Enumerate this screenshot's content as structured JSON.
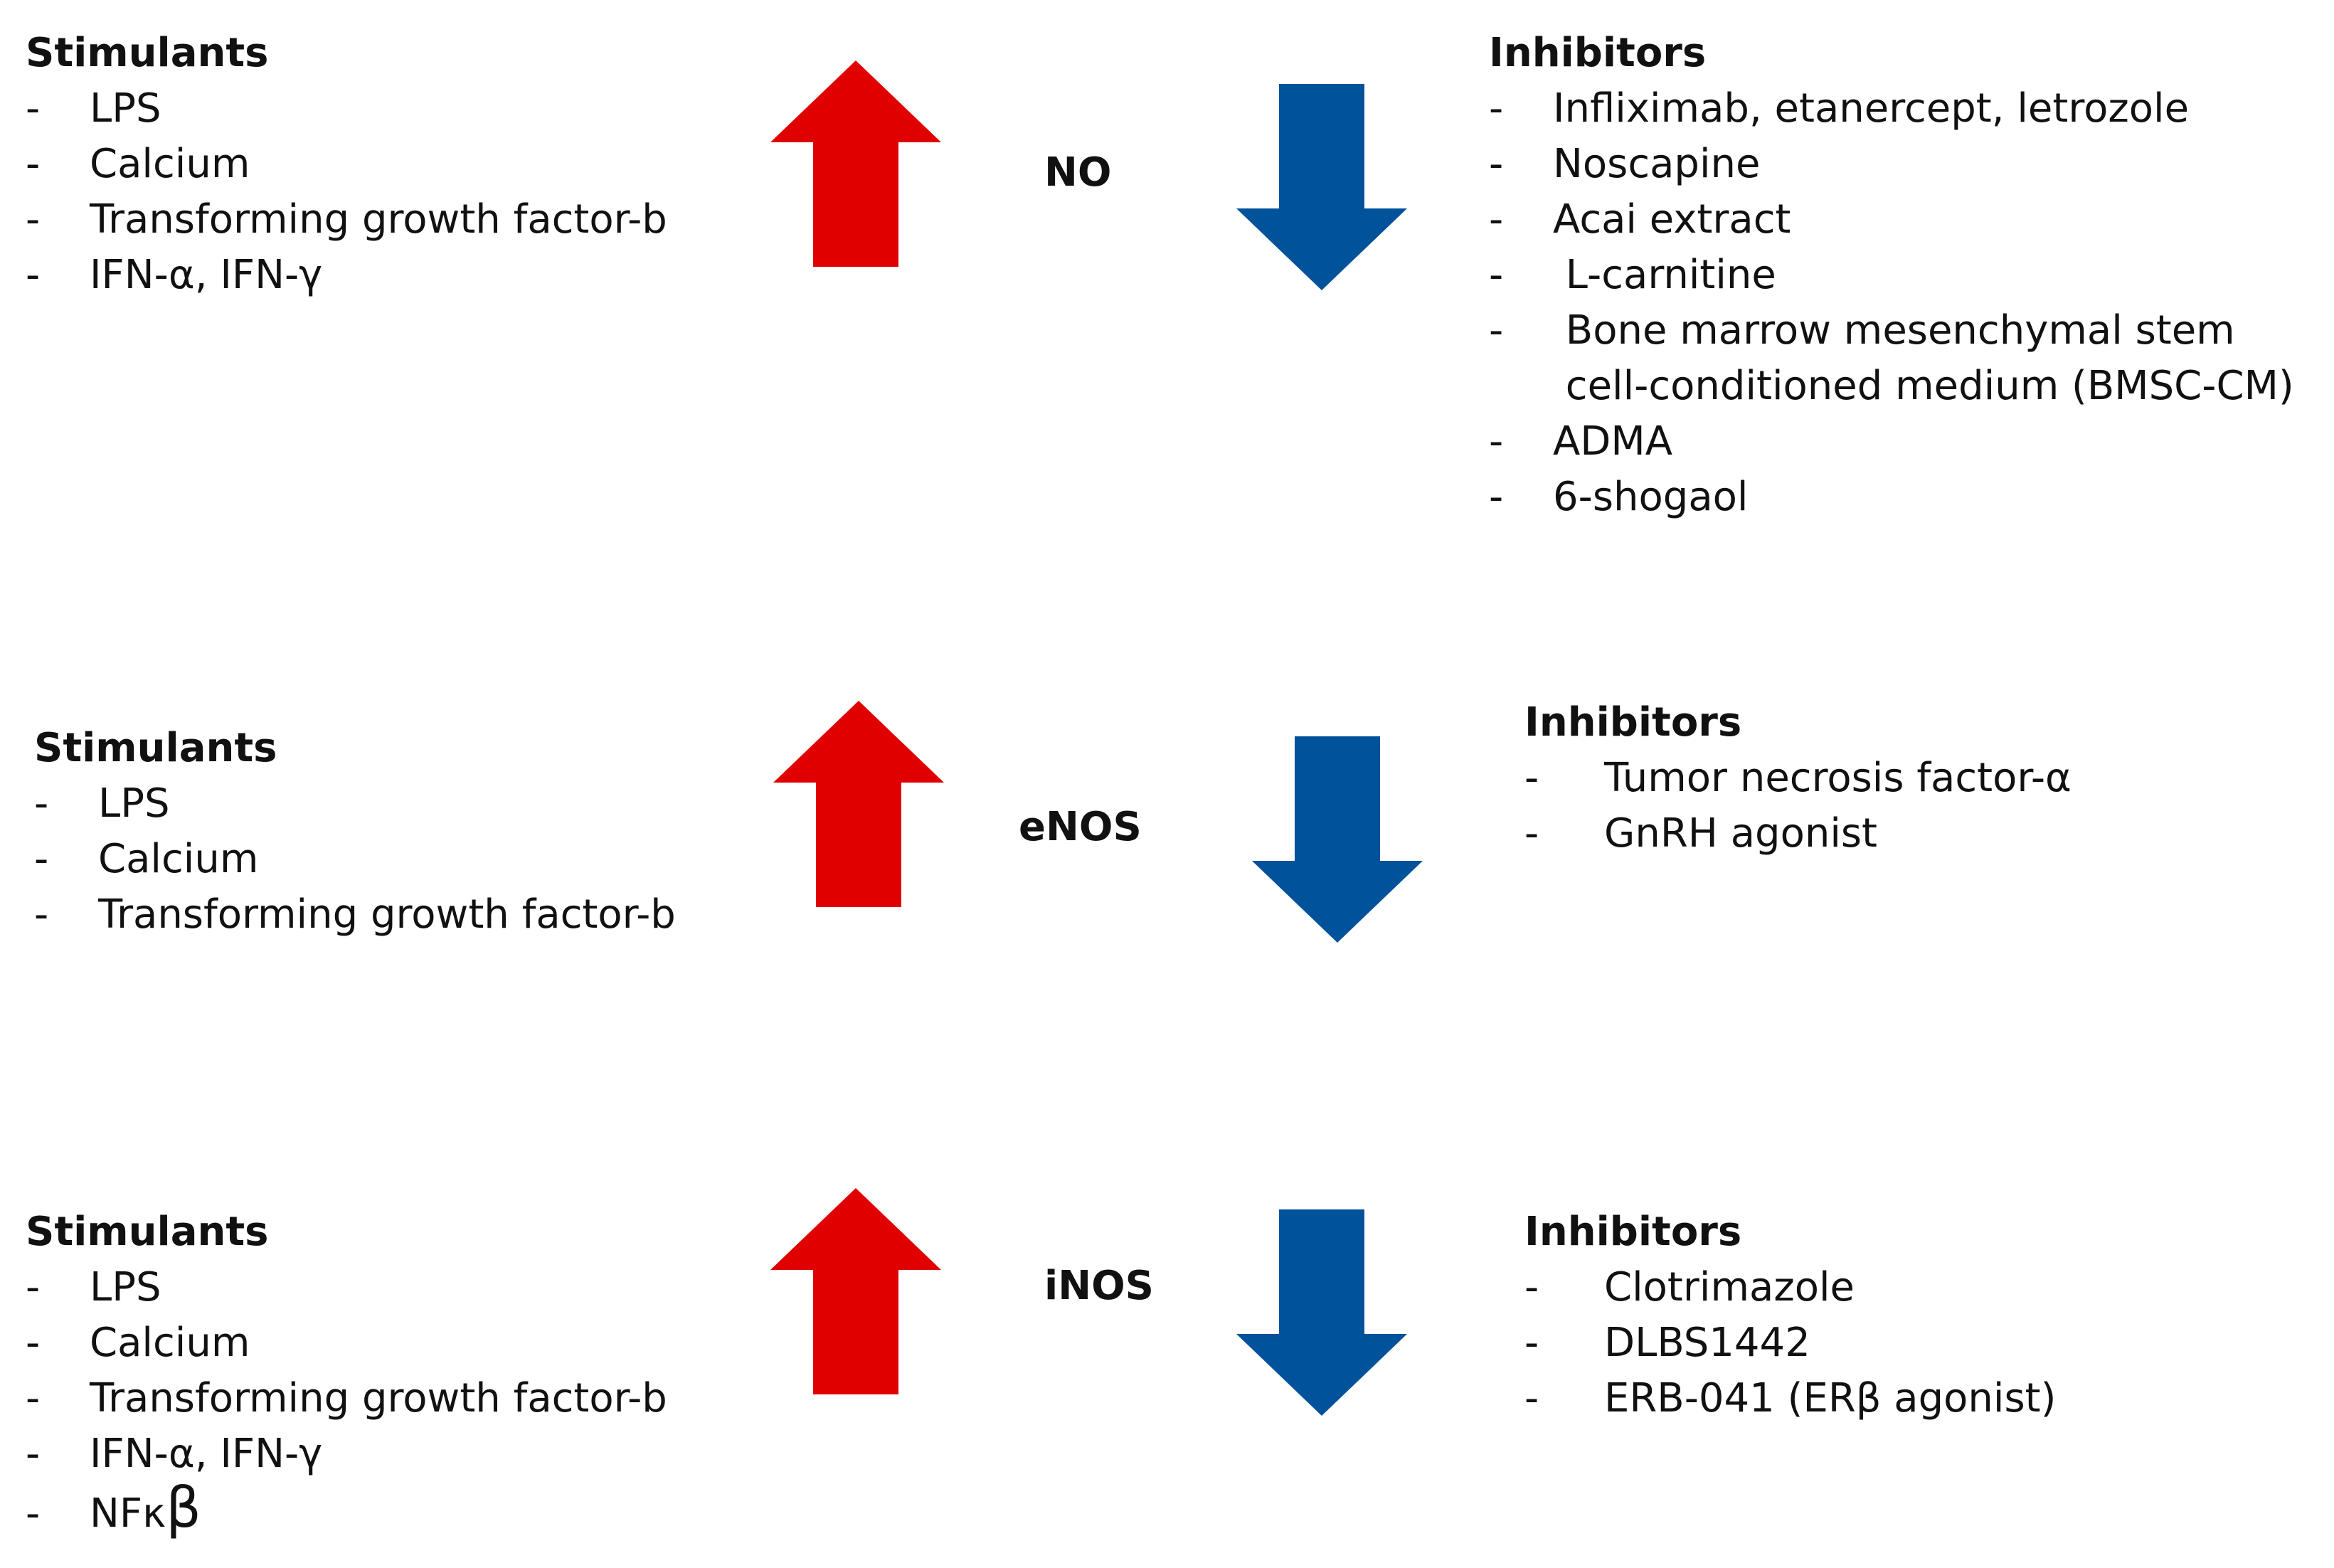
{
  "colors": {
    "up_arrow": "#e00000",
    "down_arrow": "#00529b",
    "text": "#111111"
  },
  "rows": [
    {
      "label": "NO",
      "stimulants": {
        "heading": "Stimulants",
        "items": [
          "LPS",
          "Calcium",
          "Transforming growth factor-b",
          "IFN-α, IFN-γ"
        ]
      },
      "inhibitors": {
        "heading": "Inhibitors",
        "items": [
          "Infliximab, etanercept, letrozole",
          "Noscapine",
          "Acai extract",
          " L-carnitine",
          " Bone marrow mesenchymal stem",
          " cell-conditioned medium (BMSC-CM)",
          "ADMA",
          "6-shogaol"
        ]
      }
    },
    {
      "label": "eNOS",
      "stimulants": {
        "heading": "Stimulants",
        "items": [
          "LPS",
          "Calcium",
          "Transforming growth factor-b"
        ]
      },
      "inhibitors": {
        "heading": "Inhibitors",
        "items": [
          "Tumor necrosis factor-α",
          "GnRH agonist"
        ]
      }
    },
    {
      "label": "iNOS",
      "stimulants": {
        "heading": "Stimulants",
        "items": [
          "LPS",
          "Calcium",
          "Transforming growth factor-b",
          "IFN-α, IFN-γ",
          "NFκ",
          "β"
        ]
      },
      "inhibitors": {
        "heading": "Inhibitors",
        "items": [
          "Clotrimazole",
          "DLBS1442",
          "ERB-041 (ERβ agonist)"
        ]
      }
    }
  ],
  "dash": "-"
}
